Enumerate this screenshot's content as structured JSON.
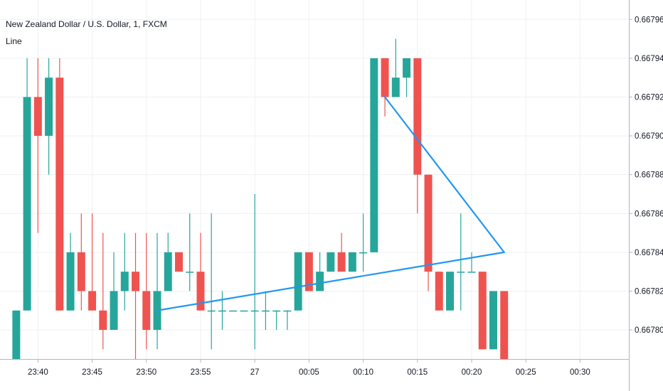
{
  "header": {
    "symbol_title": "New Zealand Dollar / U.S. Dollar, 1, FXCM",
    "indicator_label": "Line"
  },
  "colors": {
    "up": "#26a69a",
    "down": "#ef5350",
    "line": "#2196f3",
    "grid": "#eef0f3",
    "axis": "#b2b5be",
    "text": "#131722"
  },
  "chart_data": {
    "type": "candlestick",
    "y_ticks": [
      "0.66796",
      "0.66794",
      "0.66792",
      "0.66790",
      "0.66788",
      "0.66786",
      "0.66784",
      "0.66782",
      "0.66780"
    ],
    "ylim": [
      0.667785,
      0.66797
    ],
    "x_ticks": [
      {
        "label": "23:40",
        "t": -20
      },
      {
        "label": "23:45",
        "t": -15
      },
      {
        "label": "23:50",
        "t": -10
      },
      {
        "label": "23:55",
        "t": -5
      },
      {
        "label": "27",
        "t": 0
      },
      {
        "label": "00:05",
        "t": 5
      },
      {
        "label": "00:10",
        "t": 10
      },
      {
        "label": "00:15",
        "t": 15
      },
      {
        "label": "00:20",
        "t": 20
      },
      {
        "label": "00:25",
        "t": 25
      },
      {
        "label": "00:30",
        "t": 30
      }
    ],
    "xlim": [
      -23.5,
      34.5
    ],
    "candles": [
      {
        "t": -22,
        "o": 0.66778,
        "h": 0.66781,
        "l": 0.66778,
        "c": 0.66781
      },
      {
        "t": -21,
        "o": 0.66781,
        "h": 0.66794,
        "l": 0.66781,
        "c": 0.66792
      },
      {
        "t": -20,
        "o": 0.66792,
        "h": 0.66794,
        "l": 0.66785,
        "c": 0.6679
      },
      {
        "t": -19,
        "o": 0.6679,
        "h": 0.66794,
        "l": 0.66788,
        "c": 0.66793
      },
      {
        "t": -18,
        "o": 0.66793,
        "h": 0.66794,
        "l": 0.66781,
        "c": 0.66781
      },
      {
        "t": -17,
        "o": 0.66781,
        "h": 0.66785,
        "l": 0.66781,
        "c": 0.66784
      },
      {
        "t": -16,
        "o": 0.66784,
        "h": 0.66786,
        "l": 0.66781,
        "c": 0.66782
      },
      {
        "t": -15,
        "o": 0.66782,
        "h": 0.66786,
        "l": 0.66781,
        "c": 0.66781
      },
      {
        "t": -14,
        "o": 0.66781,
        "h": 0.66785,
        "l": 0.66779,
        "c": 0.6678
      },
      {
        "t": -13,
        "o": 0.6678,
        "h": 0.66784,
        "l": 0.6678,
        "c": 0.66782
      },
      {
        "t": -12,
        "o": 0.66782,
        "h": 0.66785,
        "l": 0.66781,
        "c": 0.66783
      },
      {
        "t": -11,
        "o": 0.66783,
        "h": 0.66785,
        "l": 0.66778,
        "c": 0.66782
      },
      {
        "t": -10,
        "o": 0.66782,
        "h": 0.66785,
        "l": 0.66779,
        "c": 0.6678
      },
      {
        "t": -9,
        "o": 0.6678,
        "h": 0.66785,
        "l": 0.66779,
        "c": 0.66782
      },
      {
        "t": -8,
        "o": 0.66782,
        "h": 0.66785,
        "l": 0.66782,
        "c": 0.66784
      },
      {
        "t": -7,
        "o": 0.66784,
        "h": 0.66784,
        "l": 0.66783,
        "c": 0.66783
      },
      {
        "t": -6,
        "o": 0.66783,
        "h": 0.66786,
        "l": 0.66782,
        "c": 0.66783
      },
      {
        "t": -5,
        "o": 0.66783,
        "h": 0.66785,
        "l": 0.66781,
        "c": 0.66781
      },
      {
        "t": -4,
        "o": 0.66781,
        "h": 0.66786,
        "l": 0.66779,
        "c": 0.66781
      },
      {
        "t": -3,
        "o": 0.66781,
        "h": 0.66782,
        "l": 0.6678,
        "c": 0.66781
      },
      {
        "t": -2,
        "o": 0.66781,
        "h": 0.66781,
        "l": 0.66781,
        "c": 0.66781
      },
      {
        "t": -1,
        "o": 0.66781,
        "h": 0.66781,
        "l": 0.66781,
        "c": 0.66781
      },
      {
        "t": 0,
        "o": 0.66781,
        "h": 0.66787,
        "l": 0.66779,
        "c": 0.66781
      },
      {
        "t": 1,
        "o": 0.66781,
        "h": 0.66782,
        "l": 0.6678,
        "c": 0.66781
      },
      {
        "t": 2,
        "o": 0.66781,
        "h": 0.66781,
        "l": 0.6678,
        "c": 0.66781
      },
      {
        "t": 3,
        "o": 0.66781,
        "h": 0.66781,
        "l": 0.6678,
        "c": 0.66781
      },
      {
        "t": 4,
        "o": 0.66781,
        "h": 0.66784,
        "l": 0.66781,
        "c": 0.66784
      },
      {
        "t": 5,
        "o": 0.66784,
        "h": 0.66784,
        "l": 0.66782,
        "c": 0.66782
      },
      {
        "t": 6,
        "o": 0.66782,
        "h": 0.66784,
        "l": 0.66782,
        "c": 0.66783
      },
      {
        "t": 7,
        "o": 0.66783,
        "h": 0.66784,
        "l": 0.66783,
        "c": 0.66784
      },
      {
        "t": 8,
        "o": 0.66784,
        "h": 0.66785,
        "l": 0.66783,
        "c": 0.66783
      },
      {
        "t": 9,
        "o": 0.66783,
        "h": 0.66784,
        "l": 0.66783,
        "c": 0.66784
      },
      {
        "t": 10,
        "o": 0.66784,
        "h": 0.66786,
        "l": 0.66783,
        "c": 0.66784
      },
      {
        "t": 11,
        "o": 0.66784,
        "h": 0.66794,
        "l": 0.66784,
        "c": 0.66794
      },
      {
        "t": 12,
        "o": 0.66794,
        "h": 0.66794,
        "l": 0.66791,
        "c": 0.66792
      },
      {
        "t": 13,
        "o": 0.66792,
        "h": 0.66795,
        "l": 0.66792,
        "c": 0.66793
      },
      {
        "t": 14,
        "o": 0.66793,
        "h": 0.66794,
        "l": 0.66792,
        "c": 0.66794
      },
      {
        "t": 15,
        "o": 0.66794,
        "h": 0.66794,
        "l": 0.66786,
        "c": 0.66788
      },
      {
        "t": 16,
        "o": 0.66788,
        "h": 0.66788,
        "l": 0.66782,
        "c": 0.66783
      },
      {
        "t": 17,
        "o": 0.66783,
        "h": 0.66783,
        "l": 0.66781,
        "c": 0.66781
      },
      {
        "t": 18,
        "o": 0.66781,
        "h": 0.66783,
        "l": 0.66781,
        "c": 0.66783
      },
      {
        "t": 19,
        "o": 0.66783,
        "h": 0.66786,
        "l": 0.66781,
        "c": 0.66783
      },
      {
        "t": 20,
        "o": 0.66783,
        "h": 0.66784,
        "l": 0.66783,
        "c": 0.66783
      },
      {
        "t": 21,
        "o": 0.66783,
        "h": 0.66783,
        "l": 0.66779,
        "c": 0.66779
      },
      {
        "t": 22,
        "o": 0.66779,
        "h": 0.66782,
        "l": 0.66779,
        "c": 0.66782
      },
      {
        "t": 23,
        "o": 0.66782,
        "h": 0.66782,
        "l": 0.66778,
        "c": 0.66778
      }
    ],
    "lines": [
      {
        "x1": -9,
        "y1": 0.66781,
        "x2": 23,
        "y2": 0.66784
      },
      {
        "x1": 12,
        "y1": 0.66792,
        "x2": 23,
        "y2": 0.66784
      }
    ]
  }
}
